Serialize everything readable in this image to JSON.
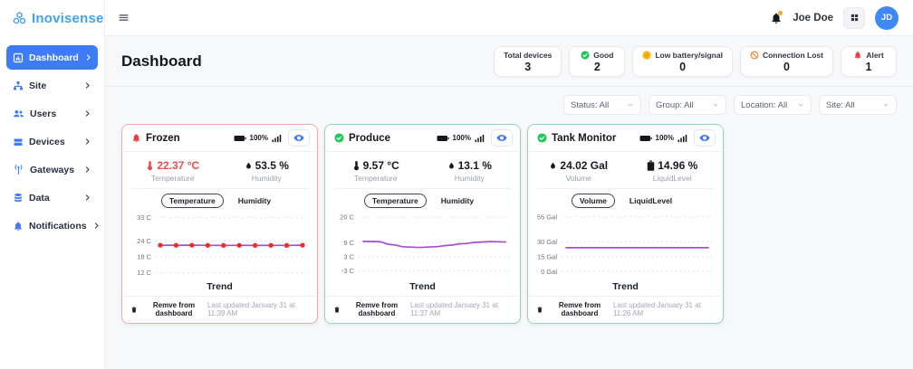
{
  "brand": {
    "name": "Inovisense",
    "color": "#3fa4e8"
  },
  "topbar": {
    "user_name": "Joe Doe",
    "avatar_initials": "JD"
  },
  "sidebar": {
    "items": [
      {
        "label": "Dashboard",
        "active": true
      },
      {
        "label": "Site",
        "active": false
      },
      {
        "label": "Users",
        "active": false
      },
      {
        "label": "Devices",
        "active": false
      },
      {
        "label": "Gateways",
        "active": false
      },
      {
        "label": "Data",
        "active": false
      },
      {
        "label": "Notifications",
        "active": false
      }
    ]
  },
  "page": {
    "title": "Dashboard"
  },
  "stats": [
    {
      "label": "Total devices",
      "value": "3",
      "icon": "none"
    },
    {
      "label": "Good",
      "value": "2",
      "icon": "check-circle",
      "color": "#22c55e"
    },
    {
      "label": "Low battery/signal",
      "value": "0",
      "icon": "dot-circle",
      "color": "#f5b715"
    },
    {
      "label": "Connection Lost",
      "value": "0",
      "icon": "slash-circle",
      "color": "#f97b2b"
    },
    {
      "label": "Alert",
      "value": "1",
      "icon": "alert-bell",
      "color": "#ef3b3b"
    }
  ],
  "filters": [
    {
      "label": "Status: All"
    },
    {
      "label": "Group: All"
    },
    {
      "label": "Location: All"
    },
    {
      "label": "Site: All"
    }
  ],
  "cards": [
    {
      "name": "Frozen",
      "status": "alert",
      "border_color": "#f2aba5",
      "battery": "100%",
      "metrics": [
        {
          "value": "22.37 °C",
          "label": "Temperature",
          "color": "#ee4b4b"
        },
        {
          "value": "53.5 %",
          "label": "Humidity",
          "color": "#16191f"
        }
      ],
      "tabs": [
        {
          "label": "Temperature"
        },
        {
          "label": "Humidity"
        }
      ],
      "chart": {
        "type": "line",
        "xlabel": "Trend",
        "ylim": [
          11.5,
          33.4
        ],
        "y_ticks": [
          {
            "v": 33,
            "label": "33 C"
          },
          {
            "v": 24,
            "label": "24 C"
          },
          {
            "v": 18,
            "label": "18 C"
          },
          {
            "v": 12,
            "label": "12 C"
          }
        ],
        "values": [
          22.4,
          22.37,
          22.4,
          22.35,
          22.32,
          22.36,
          22.33,
          22.36,
          22.34,
          22.4
        ],
        "line_color": "#a44fd0",
        "point_color": "#f22b2b",
        "show_points": true,
        "smooth": false
      },
      "footer": {
        "remove_label": "Remve from dashboard",
        "last_updated": "Last updated January 31 at 11:39 AM"
      }
    },
    {
      "name": "Produce",
      "status": "good",
      "border_color": "#8fd8b3",
      "battery": "100%",
      "metrics": [
        {
          "value": "9.57 °C",
          "label": "Temperature",
          "color": "#16191f"
        },
        {
          "value": "13.1 %",
          "label": "Humidity",
          "color": "#16191f"
        }
      ],
      "tabs": [
        {
          "label": "Temperature"
        },
        {
          "label": "Humidity"
        }
      ],
      "chart": {
        "type": "line",
        "xlabel": "Trend",
        "ylim": [
          -4.4,
          20.4
        ],
        "y_ticks": [
          {
            "v": 20,
            "label": "20 C"
          },
          {
            "v": 9,
            "label": "9 C"
          },
          {
            "v": 3,
            "label": "3 C"
          },
          {
            "v": -3,
            "label": "-3 C"
          }
        ],
        "values": [
          9.6,
          9.5,
          8.2,
          7.2,
          7.0,
          7.3,
          7.9,
          8.6,
          9.2,
          9.5,
          9.35
        ],
        "line_color": "#a44fd0",
        "point_color": "#a44fd0",
        "show_points": false,
        "smooth": true
      },
      "footer": {
        "remove_label": "Remve from dashboard",
        "last_updated": "Last updated January 31 at 11:37 AM"
      }
    },
    {
      "name": "Tank Monitor",
      "status": "good",
      "border_color": "#8fd8b3",
      "battery": "100%",
      "metrics": [
        {
          "value": "24.02 Gal",
          "label": "Volume",
          "color": "#16191f"
        },
        {
          "value": "14.96 %",
          "label": "LiquidLevel",
          "color": "#16191f"
        }
      ],
      "tabs": [
        {
          "label": "Volume"
        },
        {
          "label": "LiquidLevel"
        }
      ],
      "chart": {
        "type": "line",
        "xlabel": "Trend",
        "ylim": [
          -2.5,
          55.8
        ],
        "y_ticks": [
          {
            "v": 55,
            "label": "55 Gal"
          },
          {
            "v": 30,
            "label": "30 Gal"
          },
          {
            "v": 15,
            "label": "15 Gal"
          },
          {
            "v": 0,
            "label": "0 Gal"
          }
        ],
        "values": [
          24.02,
          24.02,
          24.02,
          24.02,
          24.02,
          24.02,
          24.02,
          24.02,
          24.02,
          24.02
        ],
        "line_color": "#a44fd0",
        "point_color": "#a44fd0",
        "show_points": false,
        "smooth": false
      },
      "footer": {
        "remove_label": "Remve from dashboard",
        "last_updated": "Last updated January 31 at 11:26 AM"
      }
    }
  ]
}
